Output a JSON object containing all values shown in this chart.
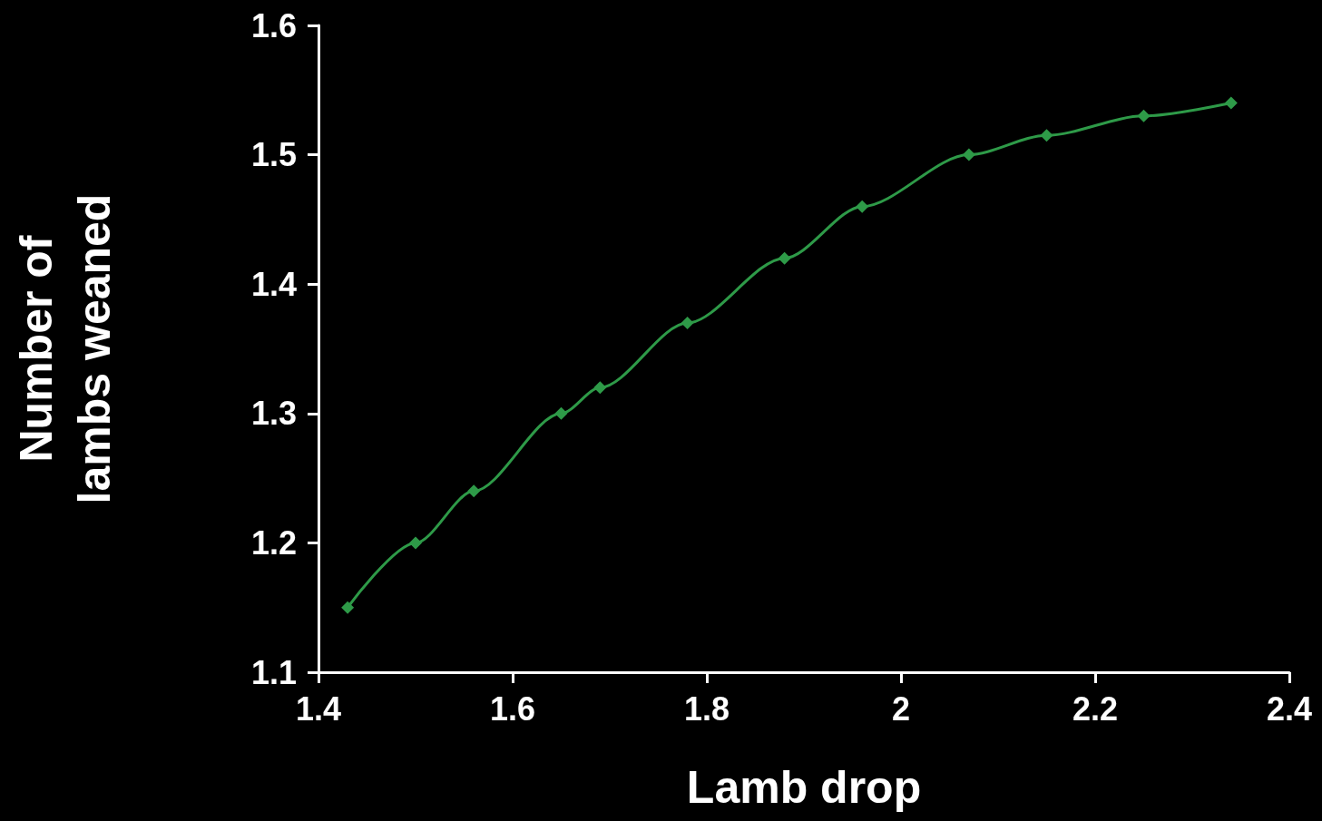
{
  "chart_data": {
    "type": "line",
    "xlabel": "Lamb drop",
    "ylabel": "Number of\nlambs weaned",
    "x": [
      1.43,
      1.5,
      1.56,
      1.65,
      1.69,
      1.78,
      1.88,
      1.96,
      2.07,
      2.15,
      2.25,
      2.34
    ],
    "series": [
      {
        "color": "#2e9a48",
        "values": [
          1.15,
          1.2,
          1.24,
          1.3,
          1.32,
          1.37,
          1.42,
          1.46,
          1.5,
          1.515,
          1.53,
          1.54
        ]
      }
    ],
    "xlim": [
      1.4,
      2.4
    ],
    "xticks": [
      1.4,
      1.6,
      1.8,
      2,
      2.2,
      2.4
    ],
    "ylim": [
      1.1,
      1.6
    ],
    "yticks": [
      1.1,
      1.2,
      1.3,
      1.4,
      1.5,
      1.6
    ],
    "marker": "diamond",
    "line_style": "solid",
    "grid": false
  }
}
